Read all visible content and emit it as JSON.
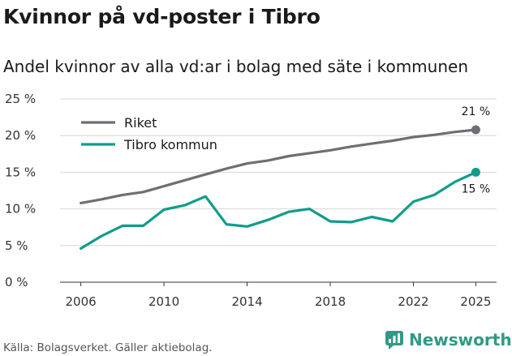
{
  "header": {
    "title": "Kvinnor på vd-poster i Tibro",
    "subtitle": "Andel kvinnor av alla vd:ar i bolag med säte i kommunen"
  },
  "footer": {
    "source": "Källa: Bolagsverket. Gäller aktiebolag.",
    "brand": "Newsworthy",
    "brand_icon": "bar-chart-speech-bubble-icon"
  },
  "colors": {
    "riket": "#6e6e73",
    "tibro": "#109c8b",
    "grid": "#d6d6d6",
    "brand": "#2f9a86"
  },
  "chart_data": {
    "type": "line",
    "title": "Kvinnor på vd-poster i Tibro",
    "subtitle": "Andel kvinnor av alla vd:ar i bolag med säte i kommunen",
    "x": [
      2006,
      2007,
      2008,
      2009,
      2010,
      2011,
      2012,
      2013,
      2014,
      2015,
      2016,
      2017,
      2018,
      2019,
      2020,
      2021,
      2022,
      2023,
      2024,
      2025
    ],
    "xticks": [
      2006,
      2010,
      2014,
      2018,
      2022,
      2025
    ],
    "xlim": [
      2005,
      2026
    ],
    "yticks": [
      0,
      5,
      10,
      15,
      20,
      25
    ],
    "ytick_labels": [
      "0 %",
      "5 %",
      "10 %",
      "15 %",
      "20 %",
      "25 %"
    ],
    "ylim": [
      0,
      25
    ],
    "grid": true,
    "legend": "top-left",
    "series": [
      {
        "name": "Riket",
        "values": [
          10.8,
          11.3,
          11.9,
          12.3,
          13.1,
          13.9,
          14.7,
          15.5,
          16.2,
          16.6,
          17.2,
          17.6,
          18.0,
          18.5,
          18.9,
          19.3,
          19.8,
          20.1,
          20.5,
          20.8
        ],
        "end_label": "21 %"
      },
      {
        "name": "Tibro kommun",
        "values": [
          4.6,
          6.3,
          7.7,
          7.7,
          9.9,
          10.5,
          11.7,
          7.9,
          7.6,
          8.5,
          9.6,
          10.0,
          8.3,
          8.2,
          8.9,
          8.3,
          11.0,
          11.9,
          13.7,
          15.0
        ],
        "end_label": "15 %"
      }
    ]
  }
}
